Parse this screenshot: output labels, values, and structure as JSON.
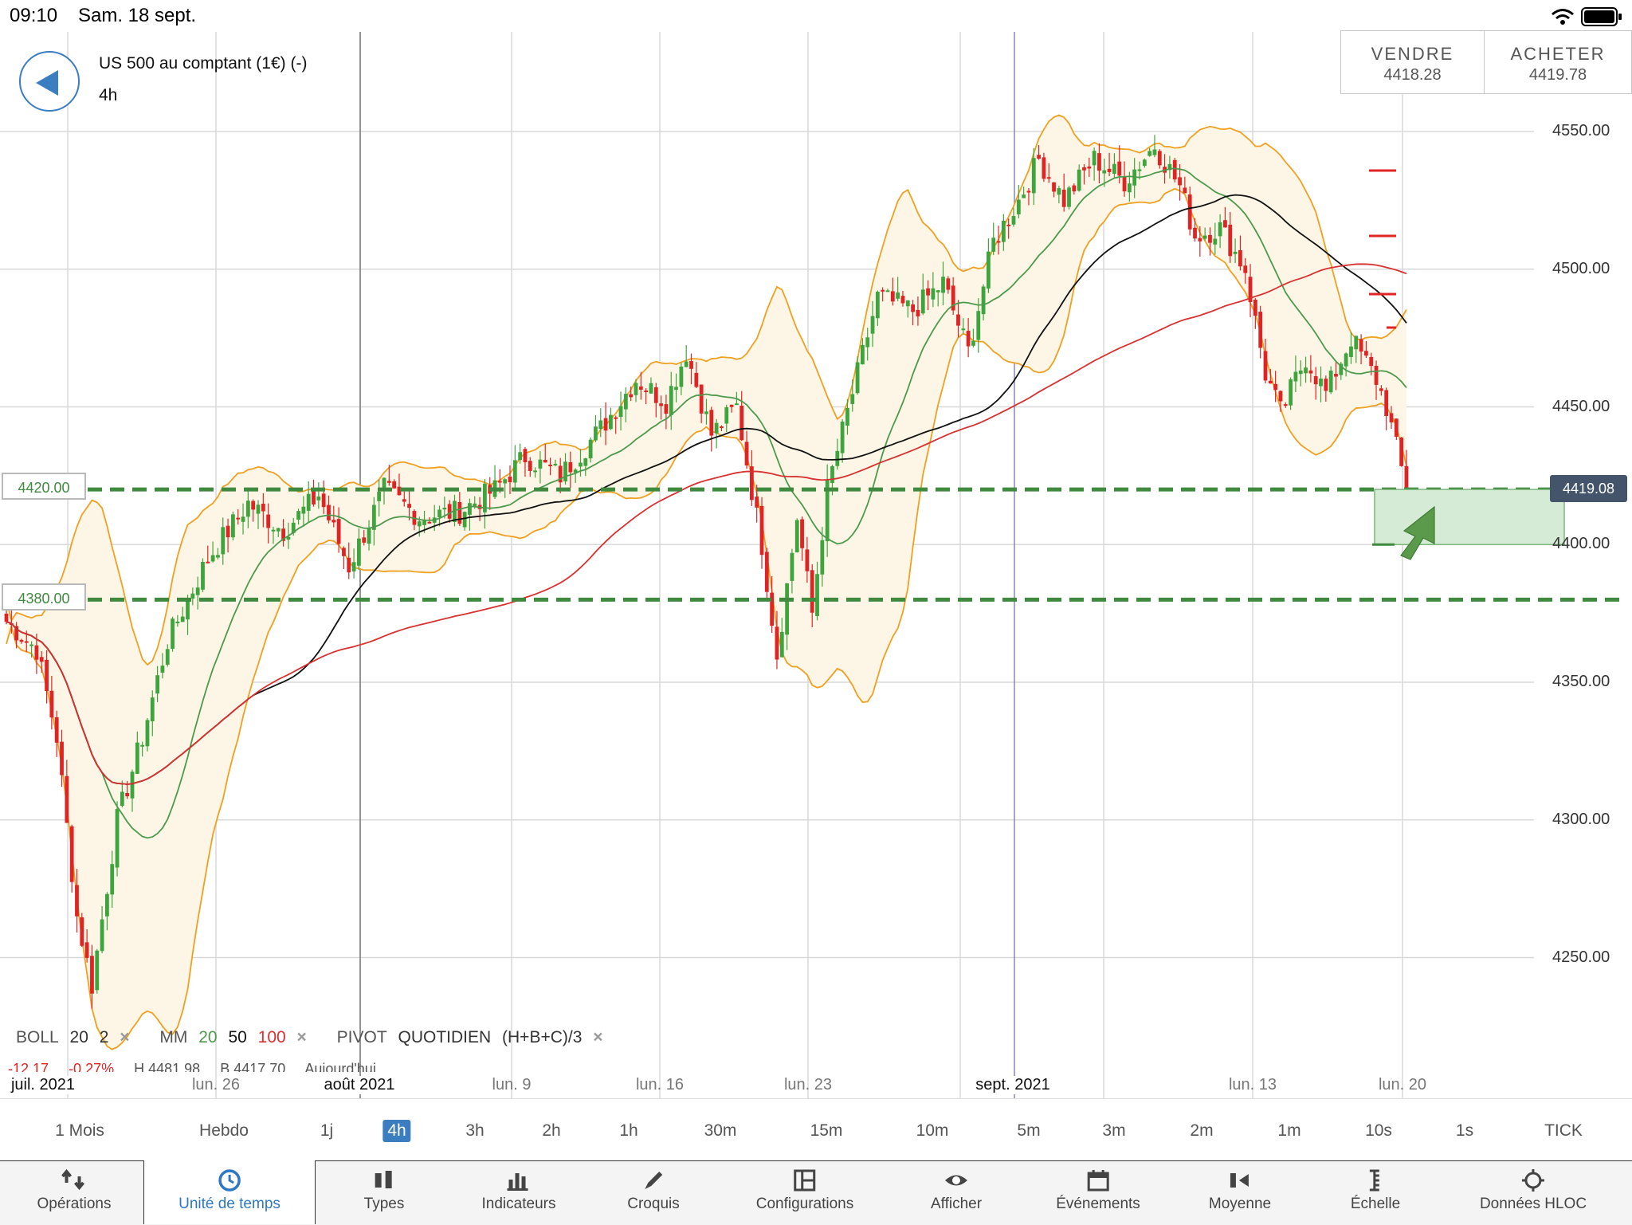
{
  "status_bar": {
    "time": "09:10",
    "date": "Sam. 18 sept."
  },
  "header": {
    "instrument": "US 500 au comptant (1€) (-)",
    "timeframe": "4h"
  },
  "trade": {
    "sell_label": "VENDRE",
    "sell_price": "4418.28",
    "buy_label": "ACHETER",
    "buy_price": "4419.78"
  },
  "price_axis": [
    "4550.00",
    "4500.00",
    "4450.00",
    "4400.00",
    "4350.00",
    "4300.00",
    "4250.00"
  ],
  "levels": {
    "upper": "4420.00",
    "lower": "4380.00",
    "current": "4419.08"
  },
  "date_axis": [
    "juil. 2021",
    "lun. 26",
    "août 2021",
    "lun. 9",
    "lun. 16",
    "lun. 23",
    "sept. 2021",
    "lun. 13",
    "lun. 20"
  ],
  "legend": {
    "boll": "BOLL",
    "boll_period": "20",
    "boll_dev": "2",
    "mm": "MM",
    "mm_a": "20",
    "mm_b": "50",
    "mm_c": "100",
    "pivot": "PIVOT",
    "pivot_type": "QUOTIDIEN",
    "pivot_formula": "(H+B+C)/3",
    "close_glyph": "×"
  },
  "stats": {
    "change": "-12.17",
    "pct": "-0.27%",
    "high": "H 4481.98",
    "low": "B 4417.70",
    "today": "Aujourd'hui"
  },
  "timeframes": [
    "1 Mois",
    "Hebdo",
    "1j",
    "4h",
    "3h",
    "2h",
    "1h",
    "30m",
    "15m",
    "10m",
    "5m",
    "3m",
    "2m",
    "1m",
    "10s",
    "1s",
    "TICK"
  ],
  "active_timeframe": "4h",
  "nav": [
    "Opérations",
    "Unité de temps",
    "Types",
    "Indicateurs",
    "Croquis",
    "Configurations",
    "Afficher",
    "Événements",
    "Moyenne",
    "Échelle",
    "Données HLOC"
  ],
  "colors": {
    "up": "#3ea53e",
    "down": "#e02424",
    "boll": "#f0a020",
    "ma20": "#4c9a4c",
    "ma50": "#111111",
    "ma100": "#d93030",
    "level": "#3f8a3f",
    "accent": "#3a7dc0"
  },
  "chart_data": {
    "type": "candlestick",
    "y_axis": {
      "min": 4230,
      "max": 4575,
      "ticks": [
        4250,
        4300,
        4350,
        4400,
        4450,
        4500,
        4550
      ]
    },
    "grid": true,
    "anchors": [
      {
        "i": 0,
        "p": 4372
      },
      {
        "i": 6,
        "p": 4362
      },
      {
        "i": 10,
        "p": 4330
      },
      {
        "i": 14,
        "p": 4265
      },
      {
        "i": 17,
        "p": 4240
      },
      {
        "i": 22,
        "p": 4300
      },
      {
        "i": 27,
        "p": 4330
      },
      {
        "i": 32,
        "p": 4365
      },
      {
        "i": 40,
        "p": 4395
      },
      {
        "i": 48,
        "p": 4415
      },
      {
        "i": 55,
        "p": 4405
      },
      {
        "i": 62,
        "p": 4418
      },
      {
        "i": 68,
        "p": 4392
      },
      {
        "i": 75,
        "p": 4420
      },
      {
        "i": 82,
        "p": 4410
      },
      {
        "i": 90,
        "p": 4412
      },
      {
        "i": 97,
        "p": 4420
      },
      {
        "i": 103,
        "p": 4432
      },
      {
        "i": 110,
        "p": 4425
      },
      {
        "i": 118,
        "p": 4442
      },
      {
        "i": 125,
        "p": 4460
      },
      {
        "i": 131,
        "p": 4452
      },
      {
        "i": 135,
        "p": 4470
      },
      {
        "i": 140,
        "p": 4440
      },
      {
        "i": 145,
        "p": 4450
      },
      {
        "i": 150,
        "p": 4400
      },
      {
        "i": 153,
        "p": 4360
      },
      {
        "i": 157,
        "p": 4410
      },
      {
        "i": 160,
        "p": 4375
      },
      {
        "i": 163,
        "p": 4420
      },
      {
        "i": 168,
        "p": 4455
      },
      {
        "i": 173,
        "p": 4490
      },
      {
        "i": 180,
        "p": 4485
      },
      {
        "i": 186,
        "p": 4495
      },
      {
        "i": 191,
        "p": 4470
      },
      {
        "i": 196,
        "p": 4510
      },
      {
        "i": 201,
        "p": 4525
      },
      {
        "i": 205,
        "p": 4540
      },
      {
        "i": 210,
        "p": 4525
      },
      {
        "i": 216,
        "p": 4540
      },
      {
        "i": 222,
        "p": 4532
      },
      {
        "i": 228,
        "p": 4545
      },
      {
        "i": 233,
        "p": 4530
      },
      {
        "i": 236,
        "p": 4512
      },
      {
        "i": 241,
        "p": 4515
      },
      {
        "i": 246,
        "p": 4500
      },
      {
        "i": 250,
        "p": 4462
      },
      {
        "i": 253,
        "p": 4448
      },
      {
        "i": 258,
        "p": 4468
      },
      {
        "i": 262,
        "p": 4455
      },
      {
        "i": 267,
        "p": 4475
      },
      {
        "i": 272,
        "p": 4460
      },
      {
        "i": 274,
        "p": 4450
      },
      {
        "i": 278,
        "p": 4420
      }
    ]
  }
}
